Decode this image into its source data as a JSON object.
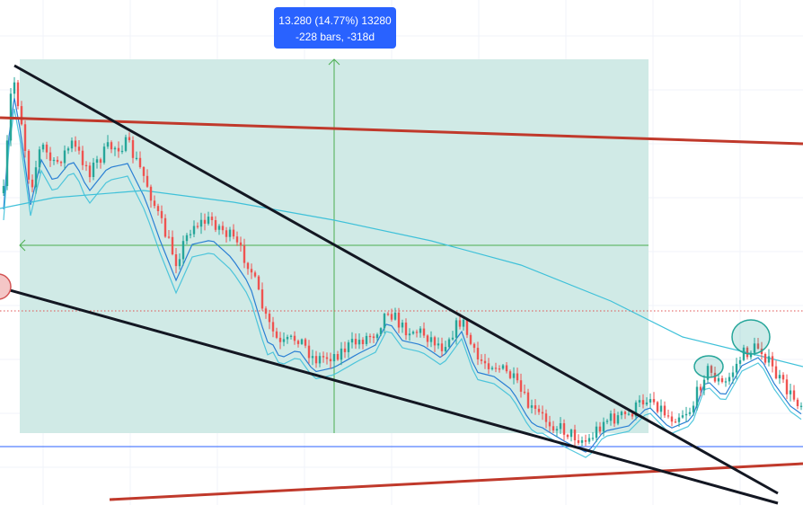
{
  "measure_tooltip": {
    "line1": "13.280 (14.77%) 13280",
    "line2": "-228 bars, -318d"
  },
  "colors": {
    "background": "#ffffff",
    "grid": "#f0f3fa",
    "up_candle": "#26a69a",
    "down_candle": "#ef5350",
    "measure_box": "#cde9e5",
    "measure_crosshair": "#4caf50",
    "tooltip_bg": "#2962ff",
    "trendline_black": "#131722",
    "trendline_red": "#c0392b",
    "ma_fast": "#2a7fd4",
    "ma_slow": "#3fc1d9",
    "horizontal_level": "#2962ff",
    "dotted_level": "#e05050",
    "highlight_ellipse": "#26a69a"
  },
  "chart_data": {
    "type": "candlestick",
    "title": "",
    "xlabel": "",
    "ylabel": "",
    "grid": true,
    "legend": "none",
    "notes": "No axis labels or prices are visible; close path is an approximate reading of the candle trend left to right.",
    "approx_close_path": [
      88,
      92,
      83,
      80,
      82,
      79,
      84,
      80,
      75,
      70,
      62,
      55,
      60,
      50,
      40,
      32,
      28,
      30,
      36,
      32,
      29,
      31,
      33,
      30,
      25,
      22,
      20,
      18,
      14,
      12,
      17,
      19,
      28,
      30,
      34,
      38,
      34,
      30
    ],
    "measurement": {
      "price_change": 13.28,
      "percent_change": 14.77,
      "bars": -228,
      "days": -318
    }
  }
}
